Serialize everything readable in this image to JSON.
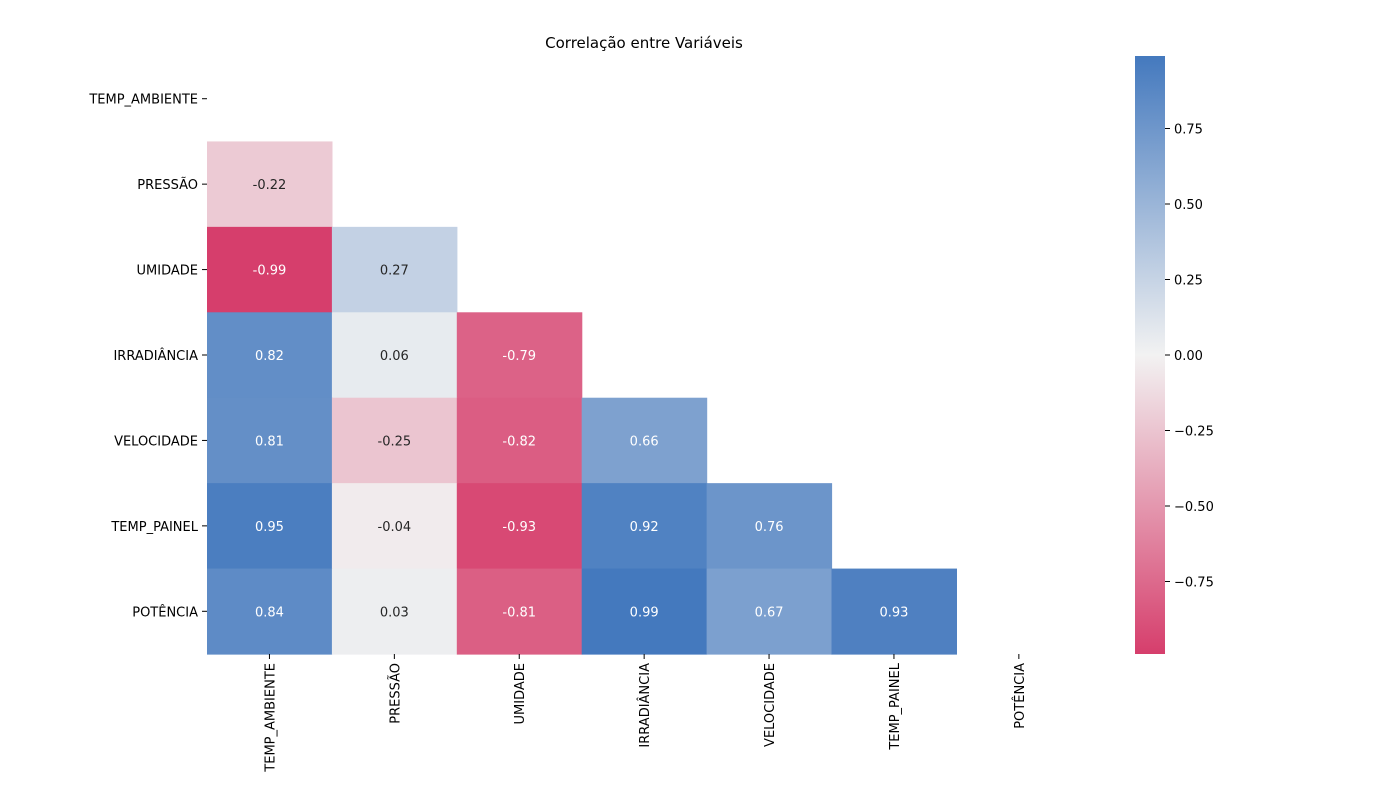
{
  "chart_data": {
    "type": "heatmap",
    "title": "Correlação entre Variáveis",
    "variables": [
      "TEMP_AMBIENTE",
      "PRESSÃO",
      "UMIDADE",
      "IRRADIÂNCIA",
      "VELOCIDADE",
      "TEMP_PAINEL",
      "POTÊNCIA"
    ],
    "matrix": [
      [
        null,
        null,
        null,
        null,
        null,
        null,
        null
      ],
      [
        -0.22,
        null,
        null,
        null,
        null,
        null,
        null
      ],
      [
        -0.99,
        0.27,
        null,
        null,
        null,
        null,
        null
      ],
      [
        0.82,
        0.06,
        -0.79,
        null,
        null,
        null,
        null
      ],
      [
        0.81,
        -0.25,
        -0.82,
        0.66,
        null,
        null,
        null
      ],
      [
        0.95,
        -0.04,
        -0.93,
        0.92,
        0.76,
        null,
        null
      ],
      [
        0.84,
        0.03,
        -0.81,
        0.99,
        0.67,
        0.93,
        null
      ]
    ],
    "mask": "upper-triangle-and-diagonal",
    "colorbar": {
      "range": [
        -0.99,
        0.99
      ],
      "ticks": [
        0.75,
        0.5,
        0.25,
        0.0,
        -0.25,
        -0.5,
        -0.75
      ],
      "tick_labels": [
        "0.75",
        "0.50",
        "0.25",
        "0.00",
        "−0.25",
        "−0.50",
        "−0.75"
      ]
    },
    "colors": {
      "negative": "#d63e6c",
      "neutral": "#f2f2f2",
      "positive": "#4479be"
    }
  }
}
